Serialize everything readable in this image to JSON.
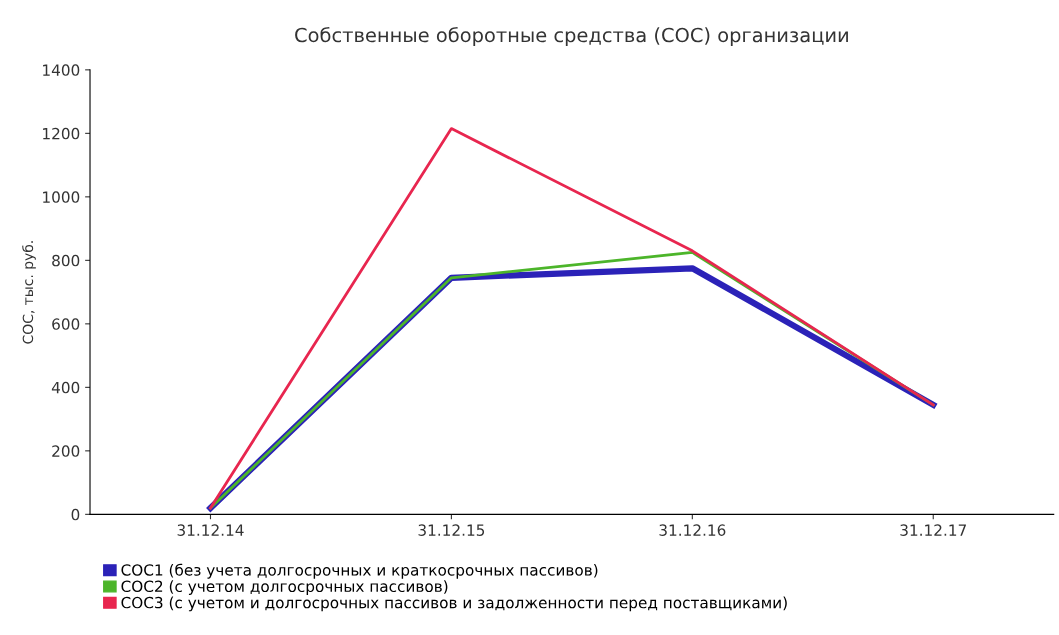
{
  "chart_data": {
    "type": "line",
    "title": "Собственные оборотные средства (СОС) организации",
    "ylabel": "СОС, тыс. руб.",
    "categories": [
      "31.12.14",
      "31.12.15",
      "31.12.16",
      "31.12.17"
    ],
    "series": [
      {
        "name": "СОС1 (без учета долгосрочных и краткосрочных пассивов)",
        "color": "#2b22b8",
        "values": [
          20,
          745,
          775,
          345
        ]
      },
      {
        "name": "СОС2 (с учетом долгосрочных пассивов)",
        "color": "#4cb52a",
        "values": [
          20,
          745,
          825,
          345
        ]
      },
      {
        "name": "СОС3 (с учетом и долгосрочных пассивов и задолженности перед поставщиками)",
        "color": "#e8264f",
        "values": [
          20,
          1215,
          830,
          345
        ]
      }
    ],
    "ylim": [
      0,
      1400
    ],
    "yticks": [
      0,
      200,
      400,
      600,
      800,
      1000,
      1200,
      1400
    ],
    "legend": "bottom",
    "line_style": "solid"
  }
}
